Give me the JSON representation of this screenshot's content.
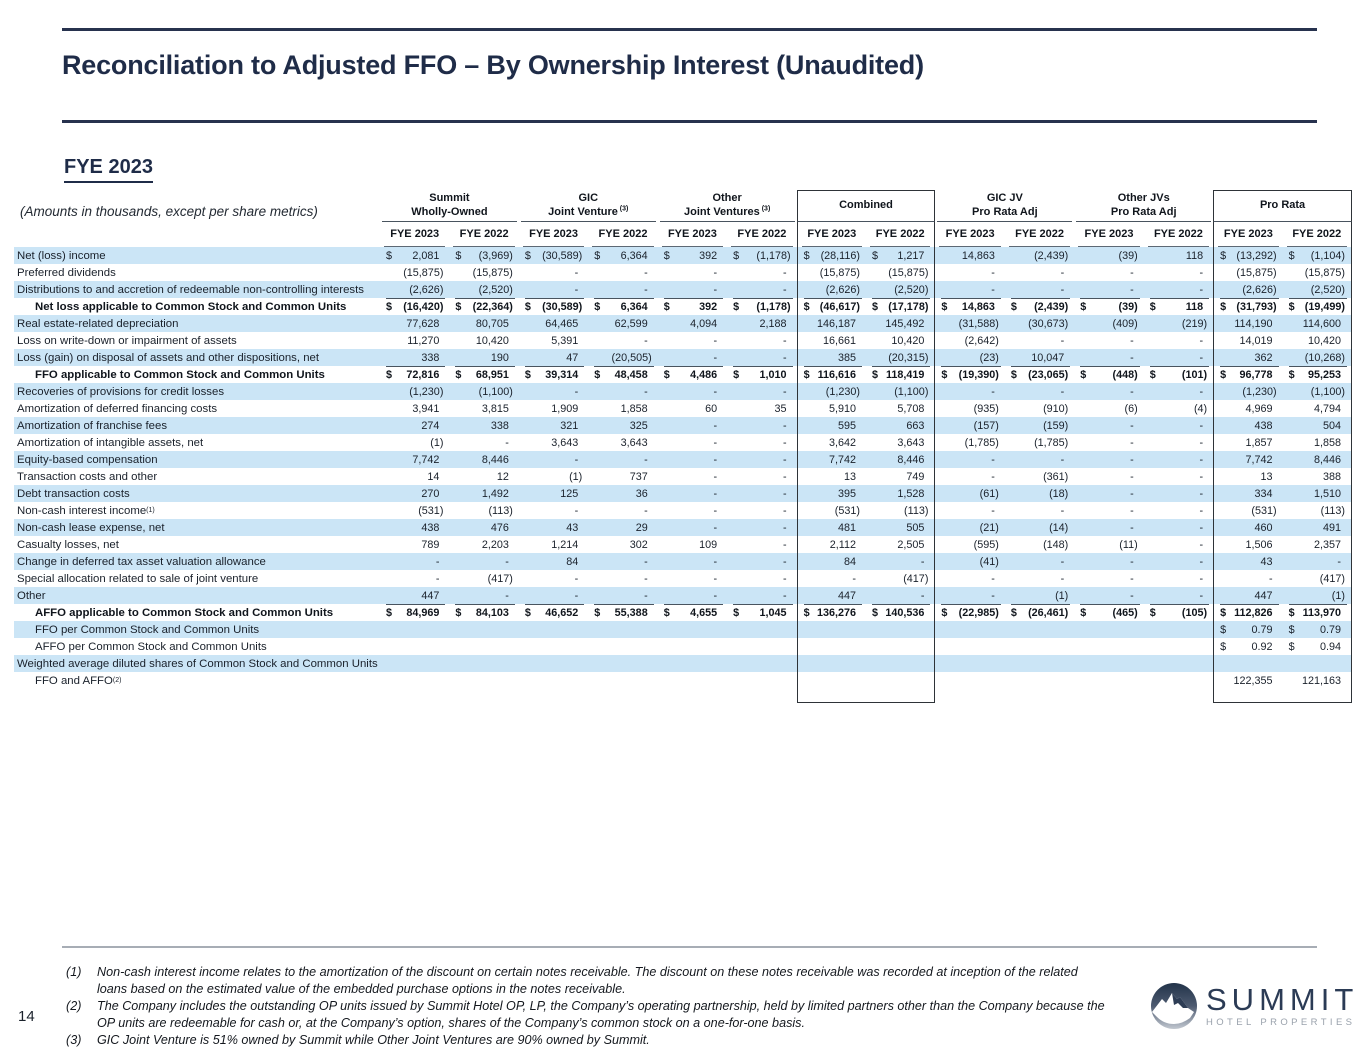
{
  "page": {
    "number": "14"
  },
  "header": {
    "title": "Reconciliation to Adjusted FFO – By Ownership Interest (Unaudited)"
  },
  "section": {
    "heading": "FYE 2023",
    "amounts_note": "(Amounts in thousands, except per share metrics)"
  },
  "colors": {
    "stripe": "#cbe5f6",
    "navy": "#1f2c48",
    "logo_navy": "#2b3b55",
    "logo_gray": "#9aa2ac"
  },
  "logo": {
    "name": "SUMMIT",
    "tagline": "HOTEL PROPERTIES",
    "icon": "mountain-circle"
  },
  "table": {
    "year_headers": [
      "FYE 2023",
      "FYE 2022"
    ],
    "groups": [
      {
        "line1": "Summit",
        "line2": "Wholly-Owned"
      },
      {
        "line1": "GIC",
        "line2": "Joint Venture",
        "sup": "(3)"
      },
      {
        "line1": "Other",
        "line2": "Joint Ventures",
        "sup": "(3)"
      },
      {
        "line1": "Combined",
        "boxed": true
      },
      {
        "line1": "GIC JV",
        "line2": "Pro Rata Adj"
      },
      {
        "line1": "Other JVs",
        "line2": "Pro Rata Adj"
      },
      {
        "line1": "Pro Rata",
        "boxed": true
      }
    ],
    "rows": [
      {
        "l": "Net (loss) income",
        "c": [
          "$ 2,081",
          "$ (3,969)",
          "$ (30,589)",
          "$ 6,364",
          "$ 392",
          "$ (1,178)",
          "$ (28,116)",
          "$ 1,217",
          "14,863",
          "(2,439)",
          "(39)",
          "118",
          "$ (13,292)",
          "$ (1,104)"
        ]
      },
      {
        "l": "Preferred dividends",
        "c": [
          "(15,875)",
          "(15,875)",
          "-",
          "-",
          "-",
          "-",
          "(15,875)",
          "(15,875)",
          "-",
          "-",
          "-",
          "-",
          "(15,875)",
          "(15,875)"
        ]
      },
      {
        "l": "Distributions to and accretion of redeemable non-controlling interests",
        "c": [
          "(2,626)",
          "(2,520)",
          "-",
          "-",
          "-",
          "-",
          "(2,626)",
          "(2,520)",
          "-",
          "-",
          "-",
          "-",
          "(2,626)",
          "(2,520)"
        ]
      },
      {
        "l": "Net loss applicable to Common Stock and Common Units",
        "b": true,
        "i": true,
        "t": true,
        "c": [
          "$ (16,420)",
          "$ (22,364)",
          "$ (30,589)",
          "$ 6,364",
          "$ 392",
          "$ (1,178)",
          "$ (46,617)",
          "$ (17,178)",
          "$ 14,863",
          "$ (2,439)",
          "$ (39)",
          "$ 118",
          "$ (31,793)",
          "$ (19,499)"
        ]
      },
      {
        "l": "Real estate-related depreciation",
        "c": [
          "77,628",
          "80,705",
          "64,465",
          "62,599",
          "4,094",
          "2,188",
          "146,187",
          "145,492",
          "(31,588)",
          "(30,673)",
          "(409)",
          "(219)",
          "114,190",
          "114,600"
        ]
      },
      {
        "l": "Loss on write-down or impairment of assets",
        "c": [
          "11,270",
          "10,420",
          "5,391",
          "-",
          "-",
          "-",
          "16,661",
          "10,420",
          "(2,642)",
          "-",
          "-",
          "-",
          "14,019",
          "10,420"
        ]
      },
      {
        "l": "Loss (gain) on disposal of assets and other dispositions, net",
        "c": [
          "338",
          "190",
          "47",
          "(20,505)",
          "-",
          "-",
          "385",
          "(20,315)",
          "(23)",
          "10,047",
          "-",
          "-",
          "362",
          "(10,268)"
        ]
      },
      {
        "l": "FFO applicable to Common Stock and Common Units",
        "b": true,
        "i": true,
        "t": true,
        "c": [
          "$ 72,816",
          "$ 68,951",
          "$ 39,314",
          "$ 48,458",
          "$ 4,486",
          "$ 1,010",
          "$ 116,616",
          "$ 118,419",
          "$ (19,390)",
          "$ (23,065)",
          "$ (448)",
          "$ (101)",
          "$ 96,778",
          "$ 95,253"
        ]
      },
      {
        "l": "Recoveries of provisions for credit losses",
        "c": [
          "(1,230)",
          "(1,100)",
          "-",
          "-",
          "-",
          "-",
          "(1,230)",
          "(1,100)",
          "-",
          "-",
          "-",
          "-",
          "(1,230)",
          "(1,100)"
        ]
      },
      {
        "l": "Amortization of deferred financing costs",
        "c": [
          "3,941",
          "3,815",
          "1,909",
          "1,858",
          "60",
          "35",
          "5,910",
          "5,708",
          "(935)",
          "(910)",
          "(6)",
          "(4)",
          "4,969",
          "4,794"
        ]
      },
      {
        "l": "Amortization of franchise fees",
        "c": [
          "274",
          "338",
          "321",
          "325",
          "-",
          "-",
          "595",
          "663",
          "(157)",
          "(159)",
          "-",
          "-",
          "438",
          "504"
        ]
      },
      {
        "l": "Amortization of intangible assets, net",
        "c": [
          "(1)",
          "-",
          "3,643",
          "3,643",
          "-",
          "-",
          "3,642",
          "3,643",
          "(1,785)",
          "(1,785)",
          "-",
          "-",
          "1,857",
          "1,858"
        ]
      },
      {
        "l": "Equity-based compensation",
        "c": [
          "7,742",
          "8,446",
          "-",
          "-",
          "-",
          "-",
          "7,742",
          "8,446",
          "-",
          "-",
          "-",
          "-",
          "7,742",
          "8,446"
        ]
      },
      {
        "l": "Transaction costs and other",
        "c": [
          "14",
          "12",
          "(1)",
          "737",
          "-",
          "-",
          "13",
          "749",
          "-",
          "(361)",
          "-",
          "-",
          "13",
          "388"
        ]
      },
      {
        "l": "Debt transaction costs",
        "c": [
          "270",
          "1,492",
          "125",
          "36",
          "-",
          "-",
          "395",
          "1,528",
          "(61)",
          "(18)",
          "-",
          "-",
          "334",
          "1,510"
        ]
      },
      {
        "l": "Non-cash interest income",
        "sup": "(1)",
        "c": [
          "(531)",
          "(113)",
          "-",
          "-",
          "-",
          "-",
          "(531)",
          "(113)",
          "-",
          "-",
          "-",
          "-",
          "(531)",
          "(113)"
        ]
      },
      {
        "l": "Non-cash lease expense, net",
        "c": [
          "438",
          "476",
          "43",
          "29",
          "-",
          "-",
          "481",
          "505",
          "(21)",
          "(14)",
          "-",
          "-",
          "460",
          "491"
        ]
      },
      {
        "l": "Casualty losses, net",
        "c": [
          "789",
          "2,203",
          "1,214",
          "302",
          "109",
          "-",
          "2,112",
          "2,505",
          "(595)",
          "(148)",
          "(11)",
          "-",
          "1,506",
          "2,357"
        ]
      },
      {
        "l": "Change in deferred tax asset valuation allowance",
        "c": [
          "-",
          "-",
          "84",
          "-",
          "-",
          "-",
          "84",
          "-",
          "(41)",
          "-",
          "-",
          "-",
          "43",
          "-"
        ]
      },
      {
        "l": "Special allocation related to sale of joint venture",
        "c": [
          "-",
          "(417)",
          "-",
          "-",
          "-",
          "-",
          "-",
          "(417)",
          "-",
          "-",
          "-",
          "-",
          "-",
          "(417)"
        ]
      },
      {
        "l": "Other",
        "c": [
          "447",
          "-",
          "-",
          "-",
          "-",
          "-",
          "447",
          "-",
          "-",
          "(1)",
          "-",
          "-",
          "447",
          "(1)"
        ]
      },
      {
        "l": "AFFO applicable to Common Stock and Common Units",
        "b": true,
        "i": true,
        "t": true,
        "c": [
          "$ 84,969",
          "$ 84,103",
          "$ 46,652",
          "$ 55,388",
          "$ 4,655",
          "$ 1,045",
          "$ 136,276",
          "$ 140,536",
          "$ (22,985)",
          "$ (26,461)",
          "$ (465)",
          "$ (105)",
          "$ 112,826",
          "$ 113,970"
        ]
      },
      {
        "l": "FFO per Common Stock and Common Units",
        "i": true,
        "c": [
          "",
          "",
          "",
          "",
          "",
          "",
          "",
          "",
          "",
          "",
          "",
          "",
          "$ 0.79",
          "$ 0.79"
        ]
      },
      {
        "l": "AFFO per Common Stock and Common Units",
        "i": true,
        "c": [
          "",
          "",
          "",
          "",
          "",
          "",
          "",
          "",
          "",
          "",
          "",
          "",
          "$ 0.92",
          "$ 0.94"
        ]
      },
      {
        "l": "Weighted average diluted shares of Common Stock and Common Units",
        "c": [
          "",
          "",
          "",
          "",
          "",
          "",
          "",
          "",
          "",
          "",
          "",
          "",
          "",
          ""
        ]
      },
      {
        "l": "FFO and AFFO",
        "sup": "(2)",
        "i": true,
        "c": [
          "",
          "",
          "",
          "",
          "",
          "",
          "",
          "",
          "",
          "",
          "",
          "",
          "122,355",
          "121,163"
        ]
      }
    ]
  },
  "footnotes": [
    {
      "num": "(1)",
      "text": "Non-cash interest income relates to the amortization of the discount on certain notes receivable. The discount on these notes receivable was recorded at inception of the related loans based on the estimated value of the embedded purchase options in the notes receivable."
    },
    {
      "num": "(2)",
      "text": "The Company includes the outstanding OP units issued by Summit Hotel OP, LP, the Company’s operating partnership, held by limited partners other than the Company because the OP units are redeemable for cash or, at the Company’s option, shares of the Company’s common stock on a one-for-one basis."
    },
    {
      "num": "(3)",
      "text": "GIC Joint Venture is 51% owned by Summit while Other Joint Ventures are 90% owned by Summit."
    }
  ]
}
